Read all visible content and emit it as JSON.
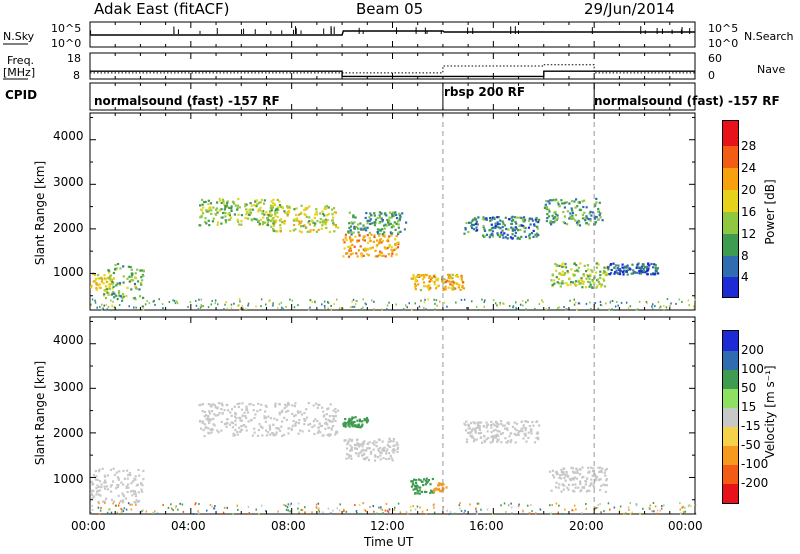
{
  "header": {
    "station": "Adak East (fitACF)",
    "beam": "Beam 05",
    "date": "29/Jun/2014"
  },
  "panels": {
    "nsky": {
      "label": "N.Sky",
      "ticks": [
        "10^5",
        "10^0"
      ],
      "right_label": "N.Search",
      "right_ticks": [
        "10^5",
        "10^0"
      ]
    },
    "freq": {
      "label_line1": "Freq.",
      "label_line2": "[MHz]",
      "ticks": [
        "18",
        "8"
      ],
      "right_label": "Nave",
      "right_ticks": [
        "60",
        "0"
      ]
    },
    "cpid": {
      "label": "CPID",
      "segments": [
        "normalsound (fast) -157 RF",
        "rbsp 200 RF",
        "normalsound (fast) -157 RF"
      ]
    },
    "power": {
      "ylabel": "Slant Range [km]",
      "yticks": [
        "4000",
        "3000",
        "2000",
        "1000"
      ],
      "colorbar_label": "Power [dB]",
      "colorbar_ticks": [
        "28",
        "24",
        "20",
        "16",
        "12",
        "8",
        "4"
      ]
    },
    "velocity": {
      "ylabel": "Slant Range [km]",
      "yticks": [
        "4000",
        "3000",
        "2000",
        "1000"
      ],
      "colorbar_label": "Velocity [m s⁻¹]",
      "colorbar_ticks": [
        "200",
        "100",
        "50",
        "15",
        "-15",
        "-50",
        "-100",
        "-200"
      ]
    }
  },
  "xaxis": {
    "label": "Time UT",
    "ticks": [
      "00:00",
      "04:00",
      "08:00",
      "12:00",
      "16:00",
      "20:00",
      "00:00"
    ]
  },
  "colors": {
    "power_scale": [
      "#e8121b",
      "#f25c14",
      "#f7a10f",
      "#e6d21a",
      "#8fc743",
      "#3f9b4f",
      "#2f6db0",
      "#1c2bd6"
    ],
    "velocity_scale": [
      "#1c2bd6",
      "#2f6db0",
      "#3f9b4f",
      "#8ee060",
      "#c8c8c8",
      "#f5d24a",
      "#f59a1f",
      "#f25c14",
      "#e8121b"
    ]
  },
  "chart_data": {
    "type": "heatmap",
    "x_range_hours": [
      0,
      24
    ],
    "y_range_km": [
      180,
      4600
    ],
    "mode_changes_hours": [
      14.0,
      20.0
    ],
    "nsky_log_level": [
      [
        0,
        2.4
      ],
      [
        10,
        2.4
      ],
      [
        10.05,
        3.2
      ],
      [
        14,
        3.2
      ],
      [
        14.05,
        3.0
      ],
      [
        24,
        3.0
      ]
    ],
    "freq_mhz": [
      [
        0,
        11.0
      ],
      [
        10,
        11.0
      ],
      [
        10,
        9.0
      ],
      [
        18,
        9.0
      ],
      [
        18,
        11.0
      ],
      [
        24,
        11.0
      ]
    ],
    "nave": [
      [
        0,
        14
      ],
      [
        14,
        14
      ],
      [
        14,
        30
      ],
      [
        18,
        30
      ],
      [
        18,
        33
      ],
      [
        20,
        33
      ],
      [
        20,
        14
      ],
      [
        24,
        14
      ]
    ],
    "power_echo_regions": [
      {
        "t": [
          0.0,
          0.9
        ],
        "r": [
          600,
          1050
        ],
        "power_db": 18
      },
      {
        "t": [
          0.5,
          2.1
        ],
        "r": [
          450,
          1250
        ],
        "power_db": 12
      },
      {
        "t": [
          4.3,
          7.5
        ],
        "r": [
          2100,
          2700
        ],
        "power_db": 14
      },
      {
        "t": [
          7.0,
          9.8
        ],
        "r": [
          1950,
          2550
        ],
        "power_db": 16
      },
      {
        "t": [
          10.0,
          12.2
        ],
        "r": [
          1400,
          1900
        ],
        "power_db": 22
      },
      {
        "t": [
          10.2,
          12.5
        ],
        "r": [
          1900,
          2400
        ],
        "power_db": 10
      },
      {
        "t": [
          12.7,
          14.8
        ],
        "r": [
          650,
          1000
        ],
        "power_db": 20
      },
      {
        "t": [
          14.8,
          17.8
        ],
        "r": [
          1800,
          2300
        ],
        "power_db": 8
      },
      {
        "t": [
          18.0,
          20.3
        ],
        "r": [
          2100,
          2700
        ],
        "power_db": 10
      },
      {
        "t": [
          18.2,
          20.5
        ],
        "r": [
          700,
          1250
        ],
        "power_db": 14
      },
      {
        "t": [
          20.5,
          22.5
        ],
        "r": [
          1000,
          1250
        ],
        "power_db": 6
      }
    ],
    "velocity_echo_regions": [
      {
        "t": [
          0.0,
          2.1
        ],
        "r": [
          450,
          1250
        ],
        "velocity": 0
      },
      {
        "t": [
          4.3,
          9.8
        ],
        "r": [
          1950,
          2700
        ],
        "velocity": 0
      },
      {
        "t": [
          10.0,
          12.2
        ],
        "r": [
          1400,
          1900
        ],
        "velocity": -5
      },
      {
        "t": [
          10.0,
          11.0
        ],
        "r": [
          2150,
          2400
        ],
        "velocity": 40
      },
      {
        "t": [
          12.7,
          13.6
        ],
        "r": [
          650,
          1000
        ],
        "velocity": 40
      },
      {
        "t": [
          13.6,
          14.1
        ],
        "r": [
          700,
          900
        ],
        "velocity": -60
      },
      {
        "t": [
          14.8,
          17.8
        ],
        "r": [
          1800,
          2300
        ],
        "velocity": 0
      },
      {
        "t": [
          18.2,
          20.5
        ],
        "r": [
          700,
          1250
        ],
        "velocity": 0
      }
    ]
  }
}
